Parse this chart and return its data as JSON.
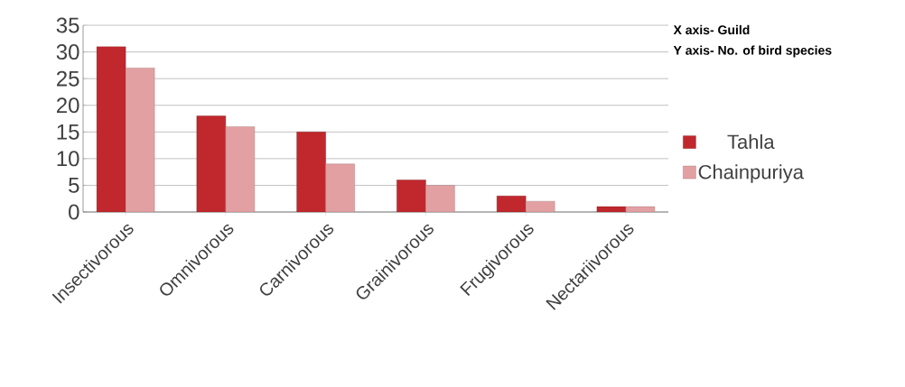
{
  "chart_data": {
    "type": "bar",
    "categories": [
      "Insectivorous",
      "Omnivorous",
      "Carnivorous",
      "Grainivorous",
      "Frugivorous",
      "Nectariivorous"
    ],
    "series": [
      {
        "name": "Tahla",
        "color": "#c0282d",
        "values": [
          31,
          18,
          15,
          6,
          3,
          1
        ]
      },
      {
        "name": "Chainpuriya",
        "color": "#e3a0a3",
        "values": [
          27,
          16,
          9,
          5,
          2,
          1
        ]
      }
    ],
    "ylim": [
      0,
      35
    ],
    "yticks": [
      0,
      5,
      10,
      15,
      20,
      25,
      30,
      35
    ],
    "grid": "y",
    "legend": "right",
    "annotations": [
      "X axis- Guild",
      "Y axis- No. of bird species"
    ]
  }
}
